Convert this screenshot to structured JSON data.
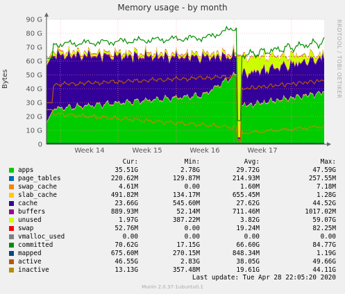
{
  "chart_data": {
    "type": "area",
    "title": "Memory usage - by month",
    "ylabel": "Bytes",
    "side_text": "RRDTOOL / TOBI OETIKER",
    "ylim": [
      0,
      90
    ],
    "y_ticks": [
      "0",
      "10 G",
      "20 G",
      "30 G",
      "40 G",
      "50 G",
      "60 G",
      "70 G",
      "80 G",
      "90 G"
    ],
    "x_ticks": [
      "Week 14",
      "Week 15",
      "Week 16",
      "Week 17"
    ],
    "legend_headers": [
      "Cur:",
      "Min:",
      "Avg:",
      "Max:"
    ],
    "series": [
      {
        "name": "apps",
        "color": "#00cc00",
        "cur": "35.51G",
        "min": "2.78G",
        "avg": "29.72G",
        "max": "47.59G"
      },
      {
        "name": "page_tables",
        "color": "#0066b3",
        "cur": "220.62M",
        "min": "129.87M",
        "avg": "214.93M",
        "max": "257.55M"
      },
      {
        "name": "swap_cache",
        "color": "#ff8000",
        "cur": "4.61M",
        "min": "0.00",
        "avg": "1.60M",
        "max": "7.18M"
      },
      {
        "name": "slab_cache",
        "color": "#ffcc00",
        "cur": "491.82M",
        "min": "134.17M",
        "avg": "655.45M",
        "max": "1.28G"
      },
      {
        "name": "cache",
        "color": "#330099",
        "cur": "23.66G",
        "min": "545.60M",
        "avg": "27.62G",
        "max": "44.52G"
      },
      {
        "name": "buffers",
        "color": "#990099",
        "cur": "889.93M",
        "min": "52.14M",
        "avg": "711.46M",
        "max": "1017.02M"
      },
      {
        "name": "unused",
        "color": "#ccff00",
        "cur": "1.97G",
        "min": "387.22M",
        "avg": "3.82G",
        "max": "59.07G"
      },
      {
        "name": "swap",
        "color": "#ff0000",
        "cur": "52.76M",
        "min": "0.00",
        "avg": "19.24M",
        "max": "82.25M"
      },
      {
        "name": "vmalloc_used",
        "color": "#808080",
        "cur": "0.00",
        "min": "0.00",
        "avg": "0.00",
        "max": "0.00"
      },
      {
        "name": "committed",
        "color": "#008f00",
        "cur": "70.62G",
        "min": "17.15G",
        "avg": "66.60G",
        "max": "84.77G"
      },
      {
        "name": "mapped",
        "color": "#00487d",
        "cur": "675.60M",
        "min": "270.15M",
        "avg": "848.34M",
        "max": "1.19G"
      },
      {
        "name": "active",
        "color": "#b35a00",
        "cur": "46.55G",
        "min": "2.83G",
        "avg": "38.05G",
        "max": "49.66G"
      },
      {
        "name": "inactive",
        "color": "#b38f00",
        "cur": "13.13G",
        "min": "357.48M",
        "avg": "19.61G",
        "max": "44.11G"
      }
    ]
  },
  "last_update": "Last update: Tue Apr 28 22:05:20 2020",
  "footer": "Munin 2.0.37-1ubuntu0.1"
}
